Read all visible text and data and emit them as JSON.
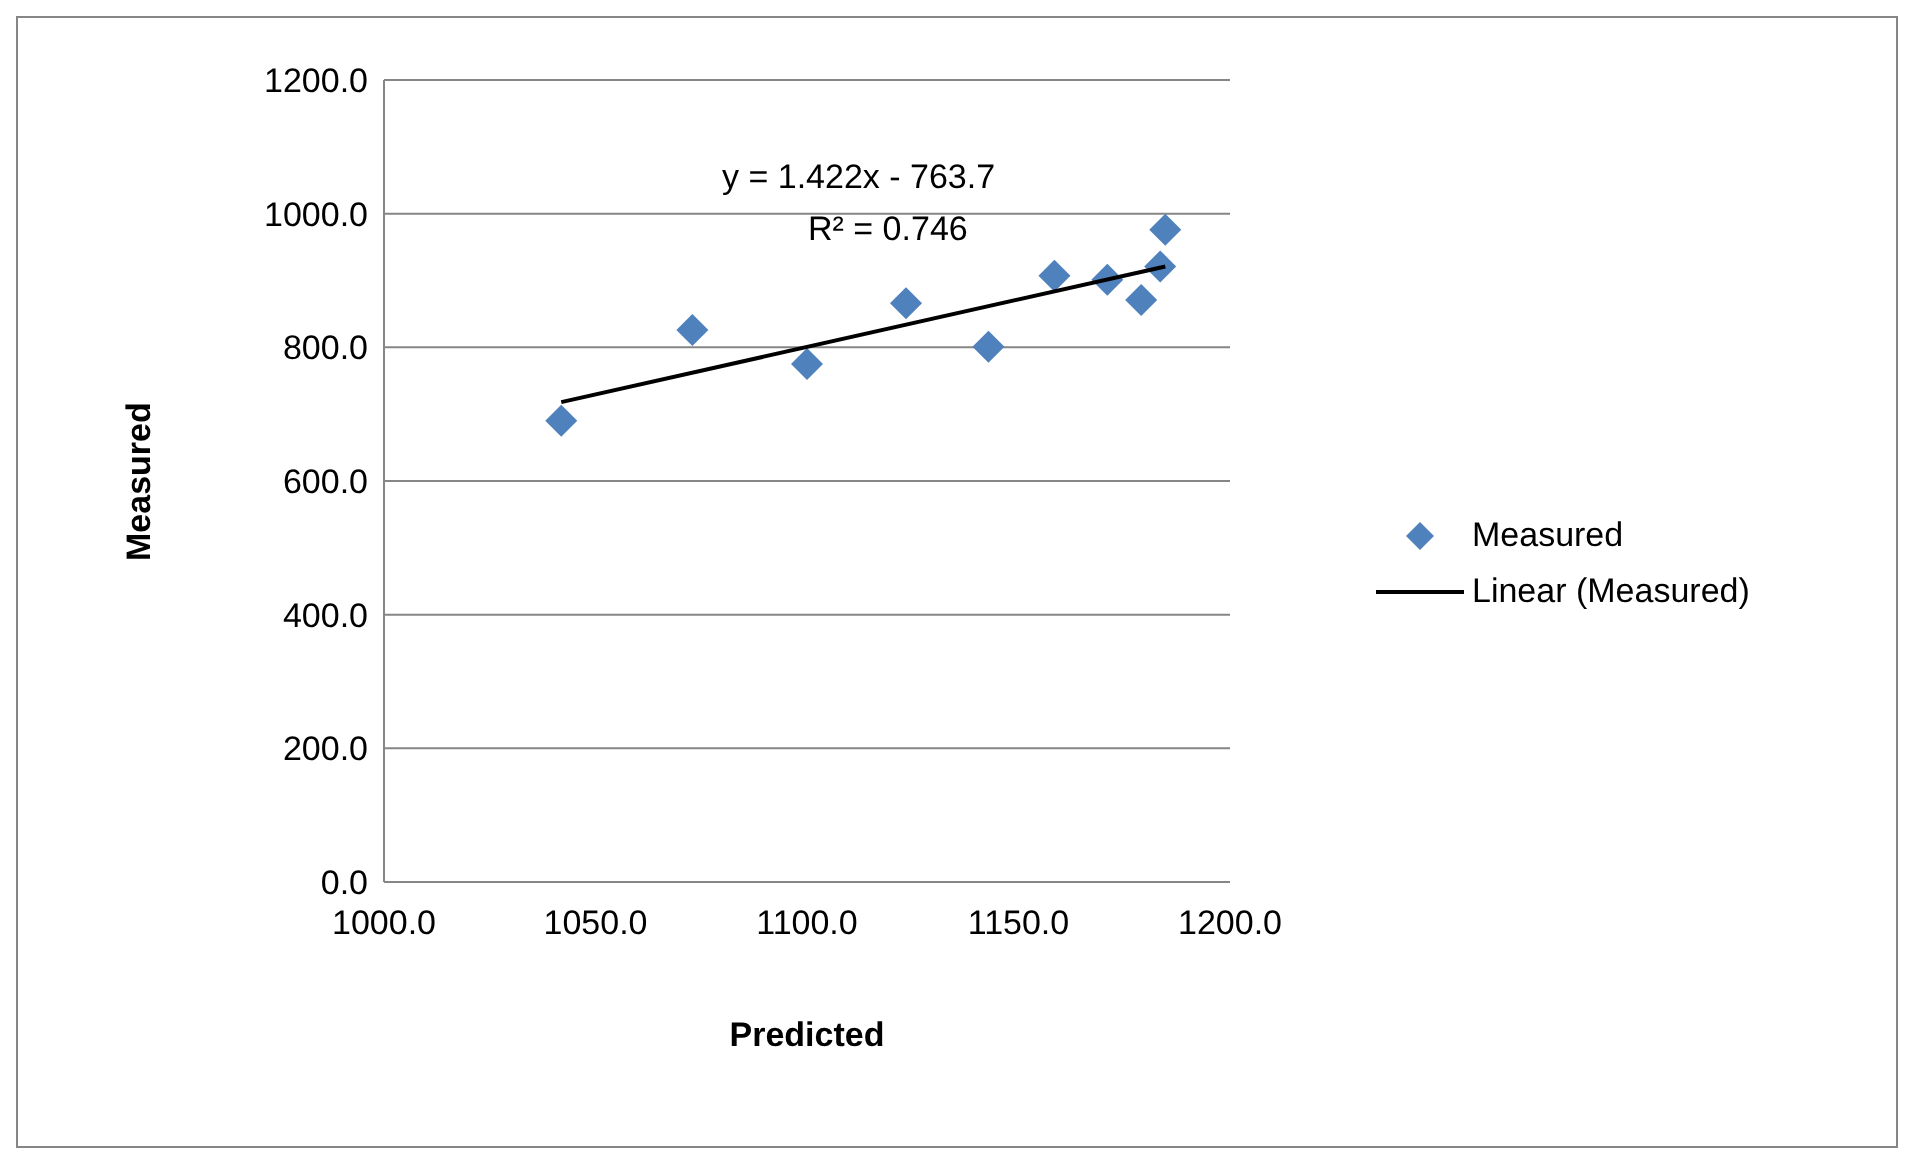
{
  "chart_data": {
    "type": "scatter",
    "xlabel": "Predicted",
    "ylabel": "Measured",
    "xlim": [
      1000,
      1200
    ],
    "xticks": [
      {
        "value": 1000,
        "label": "1000.0"
      },
      {
        "value": 1050,
        "label": "1050.0"
      },
      {
        "value": 1100,
        "label": "1100.0"
      },
      {
        "value": 1150,
        "label": "1150.0"
      },
      {
        "value": 1200,
        "label": "1200.0"
      }
    ],
    "ylim": [
      0,
      1200
    ],
    "yticks": [
      {
        "value": 0,
        "label": "0.0"
      },
      {
        "value": 200,
        "label": "200.0"
      },
      {
        "value": 400,
        "label": "400.0"
      },
      {
        "value": 600,
        "label": "600.0"
      },
      {
        "value": 800,
        "label": "800.0"
      },
      {
        "value": 1000,
        "label": "1000.0"
      },
      {
        "value": 1200,
        "label": "1200.0"
      }
    ],
    "grid": "y",
    "legend": "right",
    "series": [
      {
        "name": "Measured",
        "marker": "diamond",
        "color": "#4f81bd",
        "x": [
          1041.9,
          1072.9,
          1100,
          1123.4,
          1142.9,
          1158.5,
          1171,
          1179,
          1184.7,
          1183.5
        ],
        "values": [
          690,
          826,
          775,
          866,
          801,
          907,
          901,
          871,
          976,
          921
        ]
      },
      {
        "name": "Linear (Measured)",
        "type": "line",
        "marker": "none",
        "color": "#000000",
        "x": [
          1041.9,
          1184.7
        ],
        "values": [
          718,
          921
        ]
      }
    ],
    "annotations": [
      "y = 1.422x - 763.7",
      "R² = 0.746"
    ]
  }
}
